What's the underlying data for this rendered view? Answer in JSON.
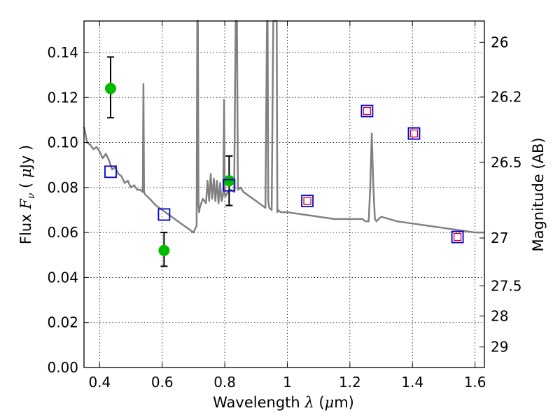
{
  "chart_data": {
    "type": "scatter",
    "xlabel": "Wavelength  λ (μm)",
    "ylabel": "Flux  F_ν  ( μJy )",
    "y2label": "Magnitude (AB)",
    "xlim": [
      0.35,
      1.63
    ],
    "ylim": [
      0.0,
      0.154
    ],
    "grid": true,
    "x_ticks": [
      0.4,
      0.6,
      0.8,
      1.0,
      1.2,
      1.4,
      1.6
    ],
    "x_tick_labels": [
      "0.4",
      "0.6",
      "0.8",
      "1",
      "1.2",
      "1.4",
      "1.6"
    ],
    "y_ticks": [
      0.0,
      0.02,
      0.04,
      0.06,
      0.08,
      0.1,
      0.12,
      0.14
    ],
    "y_tick_labels": [
      "0.00",
      "0.02",
      "0.04",
      "0.06",
      "0.08",
      "0.10",
      "0.12",
      "0.14"
    ],
    "y2_ticks": [
      26,
      26.2,
      26.5,
      27,
      27.5,
      28,
      29
    ],
    "y2_tick_labels": [
      "26",
      "26.2",
      "26.5",
      "27",
      "27.5",
      "28",
      "29"
    ],
    "colors": {
      "model": "#808080",
      "observed": "#00bb00",
      "model_box": "#0000cc",
      "inner_box": "#cc0033",
      "errorbar": "#000000",
      "grid": "#000000"
    },
    "model_spectrum": {
      "x": [
        0.35,
        0.36,
        0.37,
        0.38,
        0.39,
        0.4,
        0.41,
        0.42,
        0.43,
        0.44,
        0.45,
        0.46,
        0.47,
        0.48,
        0.49,
        0.5,
        0.51,
        0.52,
        0.53,
        0.538,
        0.54,
        0.542,
        0.545,
        0.56,
        0.58,
        0.6,
        0.62,
        0.64,
        0.66,
        0.68,
        0.7,
        0.71,
        0.712,
        0.714,
        0.716,
        0.718,
        0.72,
        0.73,
        0.74,
        0.745,
        0.75,
        0.755,
        0.76,
        0.765,
        0.77,
        0.775,
        0.78,
        0.785,
        0.79,
        0.795,
        0.798,
        0.8,
        0.802,
        0.81,
        0.82,
        0.83,
        0.835,
        0.837,
        0.839,
        0.842,
        0.85,
        0.86,
        0.87,
        0.88,
        0.89,
        0.9,
        0.91,
        0.92,
        0.93,
        0.935,
        0.937,
        0.939,
        0.942,
        0.95,
        0.955,
        0.957,
        0.959,
        0.962,
        0.964,
        0.966,
        0.968,
        0.97,
        0.98,
        1.0,
        1.05,
        1.1,
        1.15,
        1.2,
        1.24,
        1.25,
        1.26,
        1.265,
        1.27,
        1.275,
        1.28,
        1.285,
        1.3,
        1.35,
        1.4,
        1.45,
        1.5,
        1.55,
        1.6,
        1.63
      ],
      "y": [
        0.107,
        0.1,
        0.099,
        0.097,
        0.098,
        0.096,
        0.093,
        0.095,
        0.092,
        0.088,
        0.089,
        0.086,
        0.085,
        0.082,
        0.083,
        0.08,
        0.081,
        0.079,
        0.079,
        0.078,
        0.126,
        0.078,
        0.077,
        0.075,
        0.072,
        0.07,
        0.068,
        0.066,
        0.064,
        0.062,
        0.06,
        0.063,
        0.154,
        0.154,
        0.072,
        0.069,
        0.071,
        0.075,
        0.073,
        0.083,
        0.074,
        0.086,
        0.075,
        0.084,
        0.074,
        0.083,
        0.073,
        0.082,
        0.074,
        0.077,
        0.119,
        0.077,
        0.076,
        0.078,
        0.079,
        0.078,
        0.154,
        0.154,
        0.154,
        0.079,
        0.08,
        0.078,
        0.077,
        0.076,
        0.075,
        0.074,
        0.073,
        0.072,
        0.071,
        0.154,
        0.154,
        0.074,
        0.071,
        0.07,
        0.154,
        0.154,
        0.154,
        0.154,
        0.154,
        0.154,
        0.069,
        0.07,
        0.069,
        0.069,
        0.068,
        0.067,
        0.066,
        0.066,
        0.066,
        0.065,
        0.065,
        0.08,
        0.104,
        0.08,
        0.066,
        0.065,
        0.067,
        0.065,
        0.064,
        0.063,
        0.062,
        0.061,
        0.06,
        0.06
      ]
    },
    "observed": [
      {
        "x": 0.435,
        "y": 0.124,
        "yerr_low": 0.111,
        "yerr_high": 0.138
      },
      {
        "x": 0.606,
        "y": 0.052,
        "yerr_low": 0.045,
        "yerr_high": 0.06
      },
      {
        "x": 0.814,
        "y": 0.083,
        "yerr_low": 0.072,
        "yerr_high": 0.094
      }
    ],
    "model_photometry": [
      {
        "x": 0.435,
        "y": 0.087,
        "inner": false
      },
      {
        "x": 0.606,
        "y": 0.068,
        "inner": false
      },
      {
        "x": 0.814,
        "y": 0.081,
        "inner": false
      },
      {
        "x": 1.064,
        "y": 0.074,
        "inner": true
      },
      {
        "x": 1.255,
        "y": 0.114,
        "inner": true
      },
      {
        "x": 1.405,
        "y": 0.104,
        "inner": true
      },
      {
        "x": 1.544,
        "y": 0.058,
        "inner": true
      }
    ]
  }
}
